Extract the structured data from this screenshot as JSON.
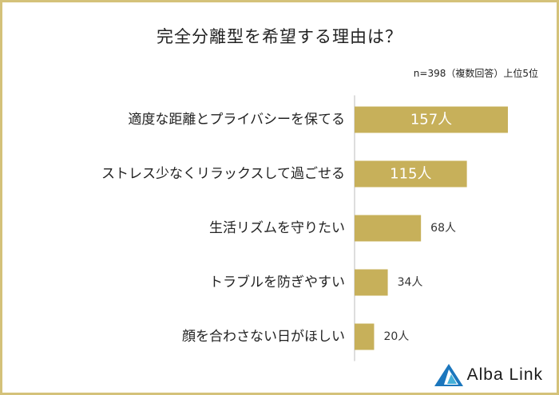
{
  "title": "完全分離型を希望する理由は？",
  "note": "n=398（複数回答）上位5位",
  "brand": {
    "name": "Alba Link",
    "logo_icon": "alba-link-triangle-logo-icon",
    "colors": {
      "primary": "#1b76bd",
      "secondary": "#44b0d9"
    }
  },
  "colors": {
    "bar": "#c7b05a",
    "frame": "#d4c27a",
    "inside_label": "#ffffff",
    "outside_label": "#333333",
    "axis_line": "#bbbbbb"
  },
  "chart_data": {
    "type": "bar",
    "orientation": "horizontal",
    "categories": [
      "適度な距離とプライバシーを保てる",
      "ストレス少なくリラックスして過ごせる",
      "生活リズムを守りたい",
      "トラブルを防ぎやすい",
      "顔を合わさない日がほしい"
    ],
    "values": [
      157,
      115,
      68,
      34,
      20
    ],
    "value_labels": [
      "157人",
      "115人",
      "68人",
      "34人",
      "20人"
    ],
    "unit": "人",
    "xlim": [
      0,
      157
    ],
    "grid": false,
    "legend": "none"
  }
}
